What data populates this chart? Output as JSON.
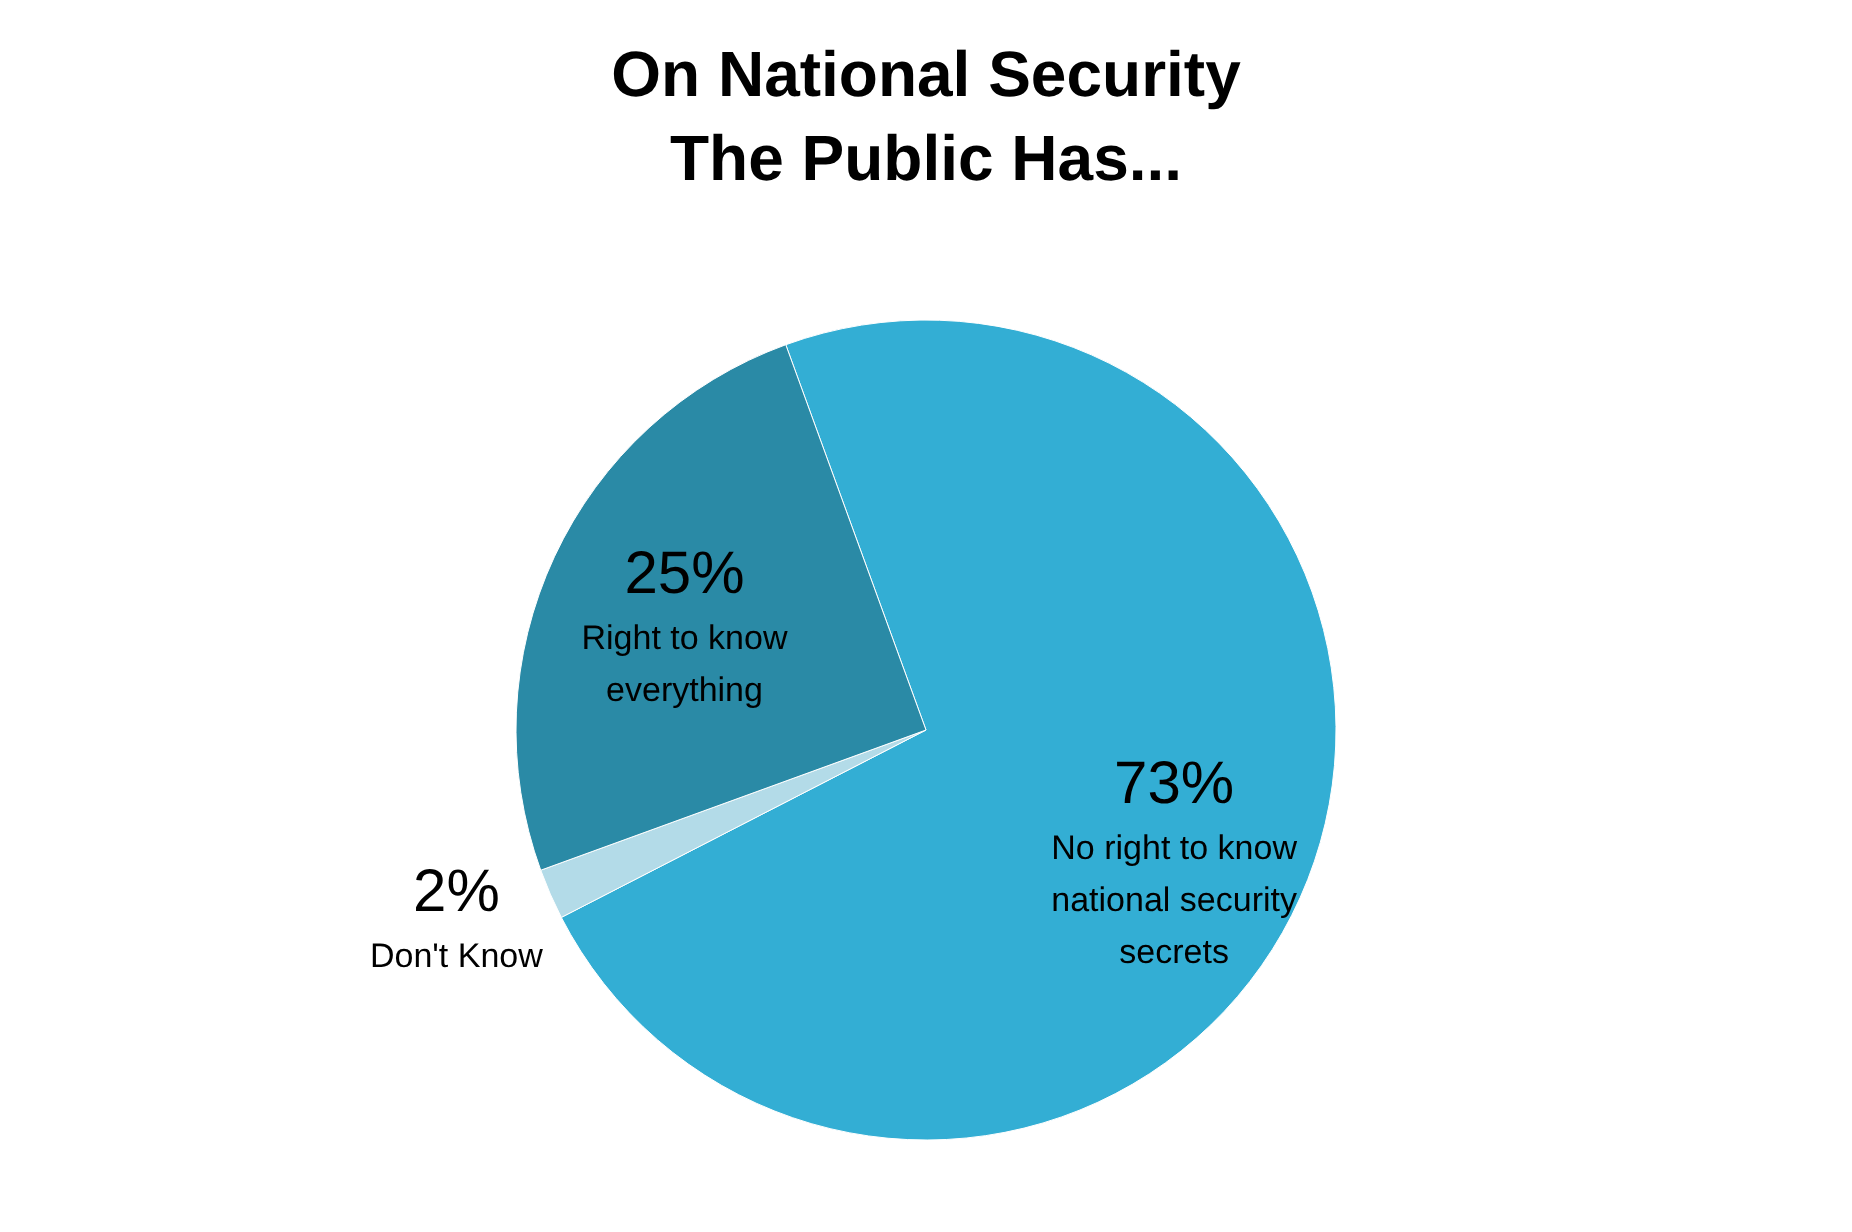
{
  "chart_data": {
    "type": "pie",
    "title": "On National Security\nThe Public Has...",
    "categories": [
      "No right to know national security secrets",
      "Don't Know",
      "Right to know everything"
    ],
    "values": [
      73,
      2,
      25
    ],
    "value_labels": [
      "73%",
      "2%",
      "25%"
    ],
    "colors": [
      "#33aed4",
      "#b3dbe8",
      "#2a8aa6"
    ]
  }
}
